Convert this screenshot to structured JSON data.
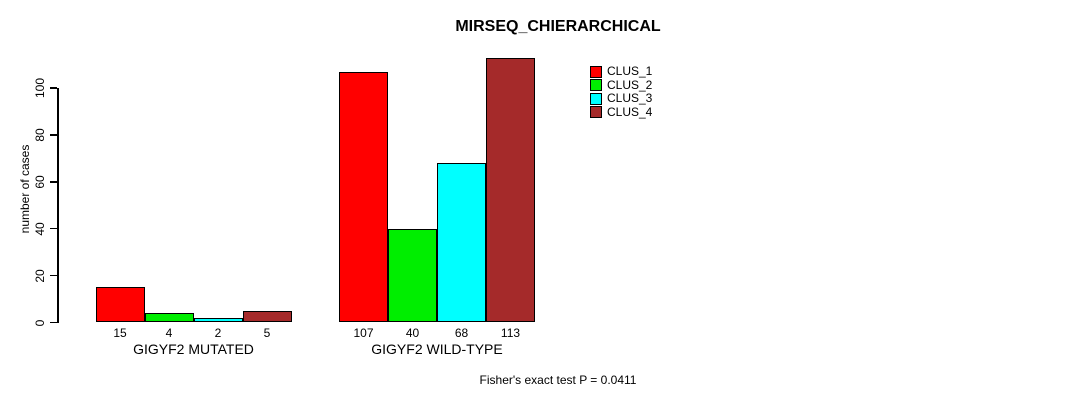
{
  "chart_data": {
    "type": "bar",
    "title": "MIRSEQ_CHIERARCHICAL",
    "xlabel": "",
    "ylabel": "number of cases",
    "categories": [
      "GIGYF2 MUTATED",
      "GIGYF2 WILD-TYPE"
    ],
    "series": [
      {
        "name": "CLUS_1",
        "color": "#ff0000",
        "values": [
          15,
          107
        ]
      },
      {
        "name": "CLUS_2",
        "color": "#00ee00",
        "values": [
          4,
          40
        ]
      },
      {
        "name": "CLUS_3",
        "color": "#00ffff",
        "values": [
          2,
          68
        ]
      },
      {
        "name": "CLUS_4",
        "color": "#a52a2a",
        "values": [
          5,
          113
        ]
      }
    ],
    "y_ticks": [
      0,
      20,
      40,
      60,
      80,
      100
    ],
    "ylim": [
      0,
      113
    ],
    "grid": false,
    "bar_labels_shown": true,
    "legend_position": "top-right",
    "annotation": "Fisher's exact test P = 0.0411"
  }
}
